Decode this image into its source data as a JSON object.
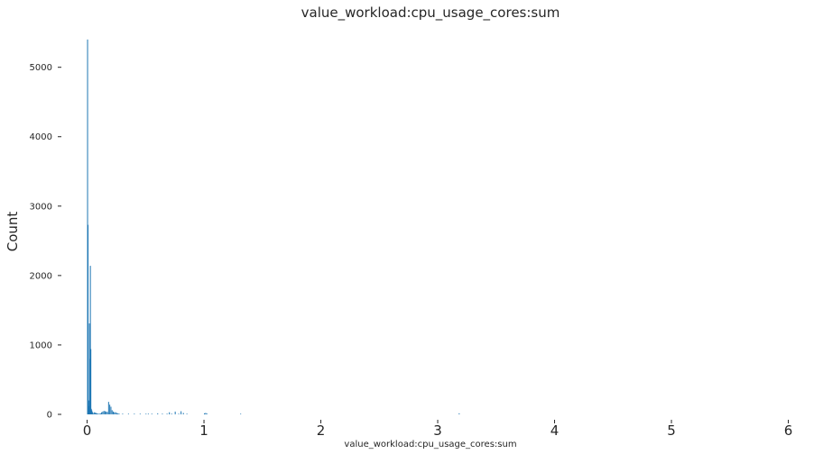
{
  "chart_data": {
    "type": "bar",
    "title": "value_workload:cpu_usage_cores:sum",
    "xlabel": "value_workload:cpu_usage_cores:sum",
    "ylabel": "Count",
    "xlim": [
      -0.12,
      6.05
    ],
    "ylim": [
      0,
      5450
    ],
    "xticks": [
      "0",
      "1",
      "2",
      "3",
      "4",
      "5",
      "6"
    ],
    "xtick_values": [
      0,
      1,
      2,
      3,
      4,
      5,
      6
    ],
    "yticks": [
      "0",
      "1000",
      "2000",
      "3000",
      "4000",
      "5000"
    ],
    "ytick_values": [
      0,
      1000,
      2000,
      3000,
      4000,
      5000
    ],
    "grid": false,
    "bar_color": "#1f77b4",
    "bin_width": 0.0035,
    "x": [
      0.0,
      0.004,
      0.008,
      0.012,
      0.016,
      0.02,
      0.024,
      0.028,
      0.032,
      0.036,
      0.04,
      0.044,
      0.048,
      0.056,
      0.064,
      0.072,
      0.08,
      0.09,
      0.1,
      0.11,
      0.12,
      0.13,
      0.14,
      0.15,
      0.16,
      0.17,
      0.18,
      0.19,
      0.2,
      0.21,
      0.22,
      0.23,
      0.24,
      0.25,
      0.26,
      0.27,
      0.3,
      0.35,
      0.4,
      0.45,
      0.5,
      0.52,
      0.55,
      0.6,
      0.64,
      0.68,
      0.7,
      0.72,
      0.75,
      0.78,
      0.8,
      0.82,
      0.85,
      1.0,
      1.01,
      1.02,
      1.31,
      3.18
    ],
    "values": [
      5400,
      2730,
      200,
      120,
      1310,
      800,
      2140,
      940,
      80,
      60,
      40,
      20,
      10,
      30,
      25,
      20,
      15,
      10,
      10,
      15,
      30,
      40,
      50,
      45,
      40,
      35,
      180,
      140,
      110,
      60,
      40,
      30,
      30,
      20,
      15,
      10,
      10,
      10,
      10,
      10,
      10,
      10,
      10,
      15,
      10,
      10,
      30,
      10,
      40,
      10,
      45,
      20,
      10,
      15,
      20,
      15,
      10,
      15
    ]
  }
}
